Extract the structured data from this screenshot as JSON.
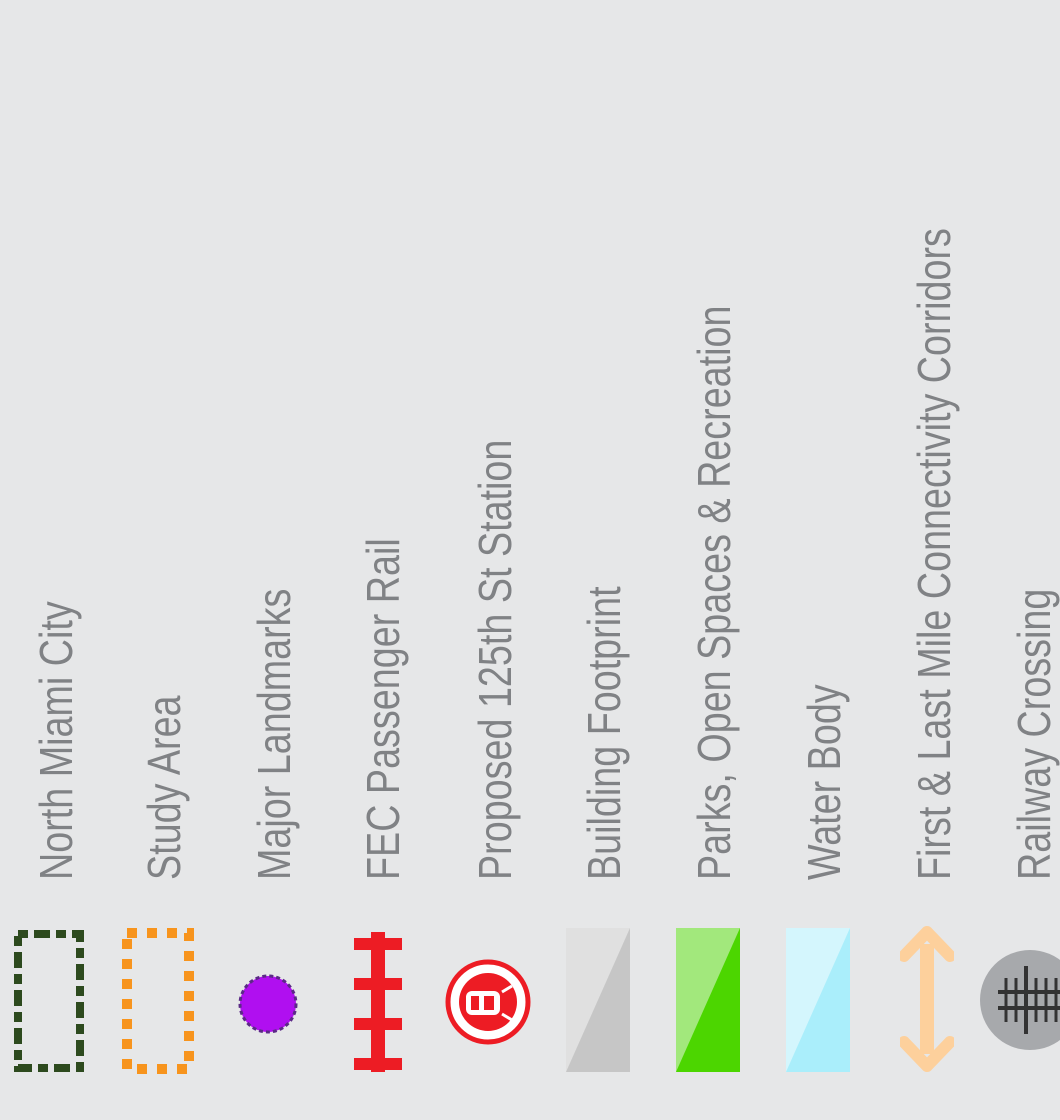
{
  "legend": {
    "items": [
      {
        "label": "North Miami City",
        "icon": "dark-green-dashed-rectangle",
        "color": "#2d4a1e"
      },
      {
        "label": "Study Area",
        "icon": "orange-dashed-rectangle",
        "color": "#f7941d"
      },
      {
        "label": "Major Landmarks",
        "icon": "purple-dot",
        "color": "#b00ff0"
      },
      {
        "label": "FEC Passenger Rail",
        "icon": "rail-track",
        "color": "#ed1c24"
      },
      {
        "label": "Proposed 125th St Station",
        "icon": "train-station",
        "color": "#ed1c24"
      },
      {
        "label": "Building Footprint",
        "icon": "grey-swatch",
        "color": "#c6c6c6"
      },
      {
        "label": "Parks, Open Spaces & Recreation",
        "icon": "green-swatch",
        "color": "#4cd600"
      },
      {
        "label": "Water Body",
        "icon": "light-blue-swatch",
        "color": "#aaeefb"
      },
      {
        "label": "First & Last Mile Connectivity Corridors",
        "icon": "double-arrow",
        "color": "#fdd09c"
      },
      {
        "label": "Railway Crossing",
        "icon": "railway-crossing",
        "color": "#a7a9ac"
      }
    ]
  }
}
